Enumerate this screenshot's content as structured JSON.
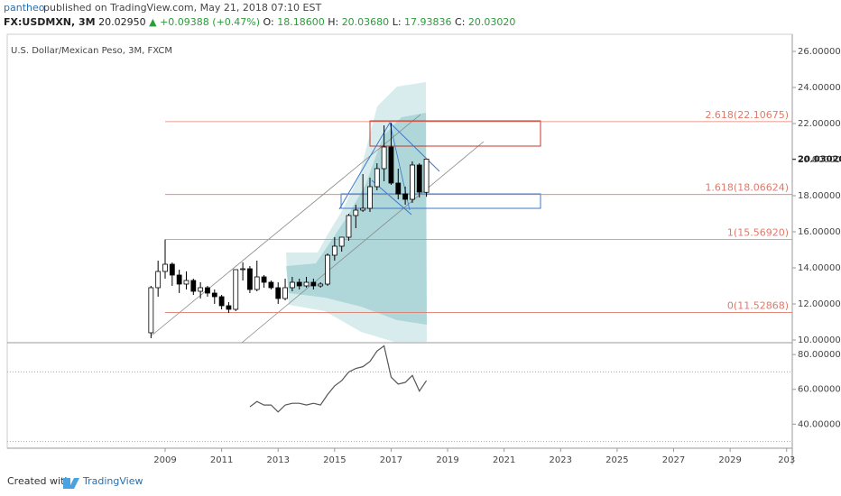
{
  "header": {
    "author": "pantheo",
    "published": "published on TradingView.com, May 21, 2018 07:10 EST",
    "symbol": "FX:USDMXN, 3M",
    "price": "20.02950",
    "change": "▲ +0.09388 (+0.47%)",
    "ohlc": [
      {
        "key": "O:",
        "value": "18.18600"
      },
      {
        "key": "H:",
        "value": "20.03680"
      },
      {
        "key": "L:",
        "value": "17.93836"
      },
      {
        "key": "C:",
        "value": "20.03020"
      }
    ]
  },
  "chart_data": {
    "type": "candlestick",
    "title": "U.S. Dollar/Mexican Peso, 3M, FXCM",
    "x": [
      2008.5,
      2008.75,
      2009.0,
      2009.25,
      2009.5,
      2009.75,
      2010.0,
      2010.25,
      2010.5,
      2010.75,
      2011.0,
      2011.25,
      2011.5,
      2011.75,
      2012.0,
      2012.25,
      2012.5,
      2012.75,
      2013.0,
      2013.25,
      2013.5,
      2013.75,
      2014.0,
      2014.25,
      2014.5,
      2014.75,
      2015.0,
      2015.25,
      2015.5,
      2015.75,
      2016.0,
      2016.25,
      2016.5,
      2016.75,
      2017.0,
      2017.25,
      2017.5,
      2017.75,
      2018.0,
      2018.25
    ],
    "open": [
      10.4,
      12.9,
      13.8,
      14.2,
      13.6,
      13.1,
      13.3,
      12.7,
      12.9,
      12.6,
      12.4,
      11.9,
      11.7,
      13.9,
      13.95,
      12.8,
      13.5,
      13.2,
      12.9,
      12.3,
      12.9,
      13.2,
      13.0,
      13.2,
      13.0,
      13.1,
      14.7,
      15.2,
      15.7,
      16.9,
      17.2,
      17.3,
      18.5,
      19.5,
      20.7,
      18.7,
      18.1,
      17.8,
      19.7,
      18.186
    ],
    "high": [
      13.0,
      14.4,
      15.57,
      14.3,
      13.9,
      13.8,
      13.4,
      13.2,
      13.0,
      12.8,
      12.5,
      12.1,
      13.9,
      14.3,
      14.1,
      14.4,
      13.6,
      13.3,
      13.2,
      13.4,
      13.5,
      13.4,
      13.5,
      13.4,
      13.2,
      14.8,
      15.7,
      15.7,
      17.0,
      17.5,
      19.2,
      19.0,
      19.8,
      21.9,
      22.04,
      19.5,
      18.5,
      19.9,
      19.8,
      20.0368
    ],
    "low": [
      10.1,
      12.4,
      13.4,
      13.0,
      12.6,
      12.8,
      12.5,
      12.3,
      12.4,
      12.0,
      11.7,
      11.5,
      11.6,
      13.3,
      12.6,
      12.7,
      12.9,
      12.8,
      12.0,
      12.2,
      12.7,
      12.8,
      12.9,
      12.8,
      12.9,
      13.0,
      14.4,
      14.9,
      15.5,
      16.2,
      17.1,
      17.1,
      18.3,
      18.8,
      18.6,
      17.8,
      17.5,
      17.6,
      17.9,
      17.93836
    ],
    "close": [
      12.9,
      13.8,
      14.2,
      13.6,
      13.1,
      13.3,
      12.7,
      12.9,
      12.6,
      12.4,
      11.9,
      11.7,
      13.9,
      13.95,
      12.8,
      13.5,
      13.2,
      12.9,
      12.3,
      12.9,
      13.2,
      13.0,
      13.2,
      13.0,
      13.1,
      14.7,
      15.2,
      15.7,
      16.9,
      17.2,
      17.3,
      18.5,
      19.5,
      20.7,
      18.7,
      18.1,
      17.8,
      19.7,
      18.2,
      20.0302
    ],
    "up_color": "#ffffff",
    "down_color": "#000000",
    "xlim": [
      2003.41,
      2031.2
    ],
    "xticks": [
      2009,
      2011,
      2013,
      2015,
      2017,
      2019,
      2021,
      2023,
      2025,
      2027,
      2029,
      {
        "value": 2031,
        "label": "203"
      }
    ],
    "ylim": [
      9.85,
      26.95
    ],
    "yticks": [
      {
        "value": 10,
        "label": "10.00000"
      },
      {
        "value": 12,
        "label": "12.00000"
      },
      {
        "value": 14,
        "label": "14.00000"
      },
      {
        "value": 16,
        "label": "16.00000"
      },
      {
        "value": 18,
        "label": "18.00000"
      },
      {
        "value": 20,
        "label": "20.00000"
      },
      {
        "value": 22,
        "label": "22.00000"
      },
      {
        "value": 24,
        "label": "24.00000"
      },
      {
        "value": 26,
        "label": "26.00000"
      }
    ],
    "last_price": {
      "value": 20.0302,
      "label": "20.03020"
    },
    "levels": [
      {
        "value": 22.10675,
        "label": "2.618(22.10675)"
      },
      {
        "value": 18.06624,
        "label": "1.618(18.06624)"
      },
      {
        "value": 15.5692,
        "label": "1(15.56920)"
      },
      {
        "value": 11.52868,
        "label": "0(11.52868)"
      }
    ],
    "level_color": "#e07a6a",
    "rsi": {
      "x": [
        2012.0,
        2012.25,
        2012.5,
        2012.75,
        2013.0,
        2013.25,
        2013.5,
        2013.75,
        2014.0,
        2014.25,
        2014.5,
        2014.75,
        2015.0,
        2015.25,
        2015.5,
        2015.75,
        2016.0,
        2016.25,
        2016.5,
        2016.75,
        2017.0,
        2017.25,
        2017.5,
        2017.75,
        2018.0,
        2018.25
      ],
      "values": [
        50,
        53,
        51,
        51,
        47,
        51,
        52,
        52,
        51,
        52,
        51,
        57,
        62,
        65,
        70,
        72,
        73,
        76,
        82,
        85,
        67,
        63,
        64,
        68,
        59,
        65
      ],
      "color": "#555555"
    },
    "y2lim": [
      26.2,
      86.8
    ],
    "y2ticks": [
      {
        "value": 40,
        "label": "40.00000"
      },
      {
        "value": 60,
        "label": "60.00000"
      },
      {
        "value": 80,
        "label": "80.00000"
      }
    ],
    "rsi_levels": [
      70,
      30
    ]
  },
  "footer": {
    "created": "Created with",
    "brand": "TradingView"
  }
}
